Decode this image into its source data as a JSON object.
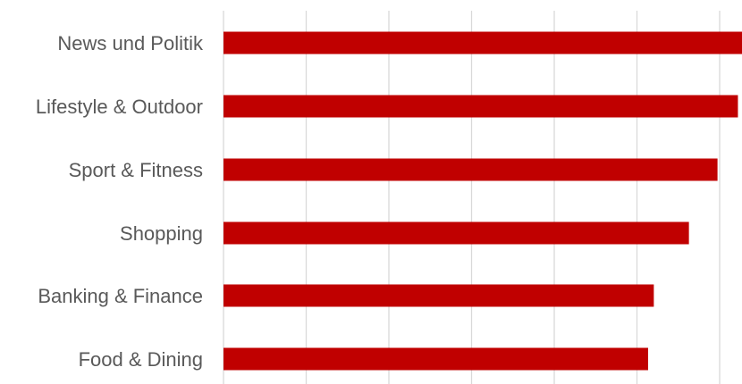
{
  "chart_data": {
    "type": "bar",
    "orientation": "horizontal",
    "title": "",
    "xlabel": "",
    "ylabel": "",
    "categories": [
      "News und Politik",
      "Lifestyle & Outdoor",
      "Sport & Fitness",
      "Shopping",
      "Banking & Finance",
      "Food & Dining"
    ],
    "values": [
      6.35,
      6.3,
      6.05,
      5.7,
      5.27,
      5.2
    ],
    "xlim": [
      0,
      6.35
    ],
    "grid": true,
    "legend": "none",
    "bar_color": "#c00000",
    "grid_color": "#d9d9d9",
    "label_color": "#595959"
  }
}
